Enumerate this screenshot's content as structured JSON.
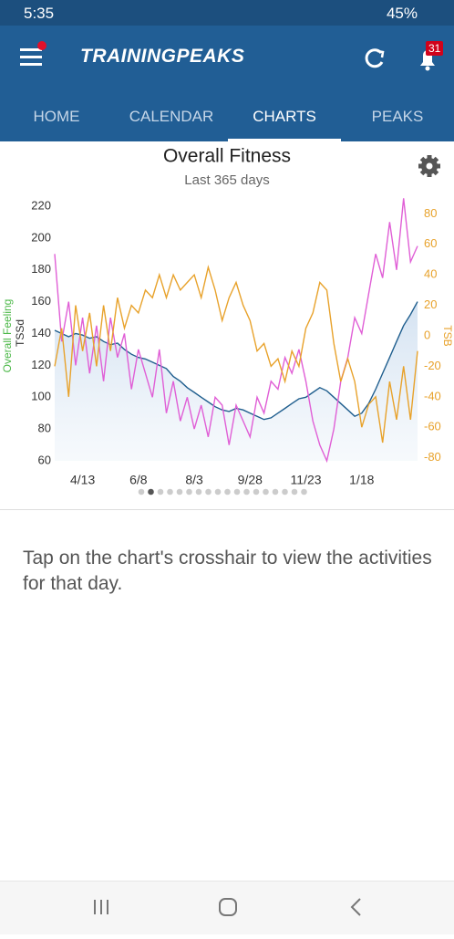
{
  "status_bar": {
    "time": "5:35",
    "battery": "45%"
  },
  "app_bar": {
    "brand": "TRAININGPEAKS",
    "notifications": "31"
  },
  "tabs": [
    "HOME",
    "CALENDAR",
    "CHARTS",
    "PEAKS"
  ],
  "active_tab": "CHARTS",
  "chart_data": {
    "type": "line",
    "title": "Overall Fitness",
    "subtitle": "Last 365 days",
    "y_label": "TSSd",
    "y_label_2": "Overall Feeling",
    "y2_label": "TSB",
    "categories": [
      null,
      null,
      null,
      null,
      "4/13",
      null,
      null,
      null,
      null,
      null,
      null,
      null,
      "6/8",
      null,
      null,
      null,
      null,
      null,
      null,
      null,
      "8/3",
      null,
      null,
      null,
      null,
      null,
      null,
      null,
      "9/28",
      null,
      null,
      null,
      null,
      null,
      null,
      null,
      "11/23",
      null,
      null,
      null,
      null,
      null,
      null,
      null,
      "1/18",
      null,
      null,
      null,
      null,
      null,
      null,
      null,
      null
    ],
    "ylim": [
      60,
      220
    ],
    "yticks": [
      60,
      80,
      100,
      120,
      140,
      160,
      180,
      200,
      220
    ],
    "y2lim": [
      -82,
      85
    ],
    "y2ticks": [
      -80,
      -60,
      -40,
      -20,
      0,
      20,
      40,
      60,
      80
    ],
    "series": [
      {
        "color": "#1f5e8e",
        "area": true,
        "values": [
          142,
          140,
          138,
          140,
          139,
          137,
          138,
          135,
          133,
          134,
          130,
          127,
          125,
          124,
          122,
          120,
          118,
          113,
          110,
          106,
          103,
          100,
          97,
          94,
          92,
          91,
          93,
          92,
          90,
          88,
          86,
          87,
          90,
          93,
          96,
          99,
          100,
          103,
          106,
          104,
          100,
          96,
          92,
          88,
          90,
          96,
          105,
          115,
          125,
          135,
          145,
          152,
          160
        ]
      },
      {
        "color": "#e05fd6",
        "values": [
          190,
          135,
          160,
          120,
          150,
          115,
          145,
          110,
          150,
          125,
          140,
          105,
          130,
          115,
          100,
          130,
          90,
          110,
          85,
          100,
          80,
          95,
          75,
          100,
          95,
          70,
          95,
          85,
          75,
          100,
          90,
          110,
          105,
          125,
          115,
          130,
          110,
          85,
          70,
          60,
          80,
          110,
          125,
          150,
          140,
          165,
          190,
          175,
          210,
          180,
          225,
          185,
          195
        ]
      },
      {
        "color": "#e8a22b",
        "axis": "y2",
        "values": [
          -20,
          5,
          -40,
          20,
          -10,
          15,
          -20,
          20,
          -10,
          25,
          5,
          20,
          15,
          30,
          25,
          40,
          25,
          40,
          30,
          35,
          40,
          25,
          45,
          30,
          10,
          25,
          35,
          20,
          10,
          -10,
          -5,
          -20,
          -15,
          -30,
          -10,
          -20,
          5,
          15,
          35,
          30,
          -5,
          -30,
          -15,
          -30,
          -60,
          -45,
          -40,
          -70,
          -30,
          -55,
          -20,
          -55,
          -10
        ]
      }
    ]
  },
  "message": "Tap on the chart's crosshair to view the activities for that day."
}
